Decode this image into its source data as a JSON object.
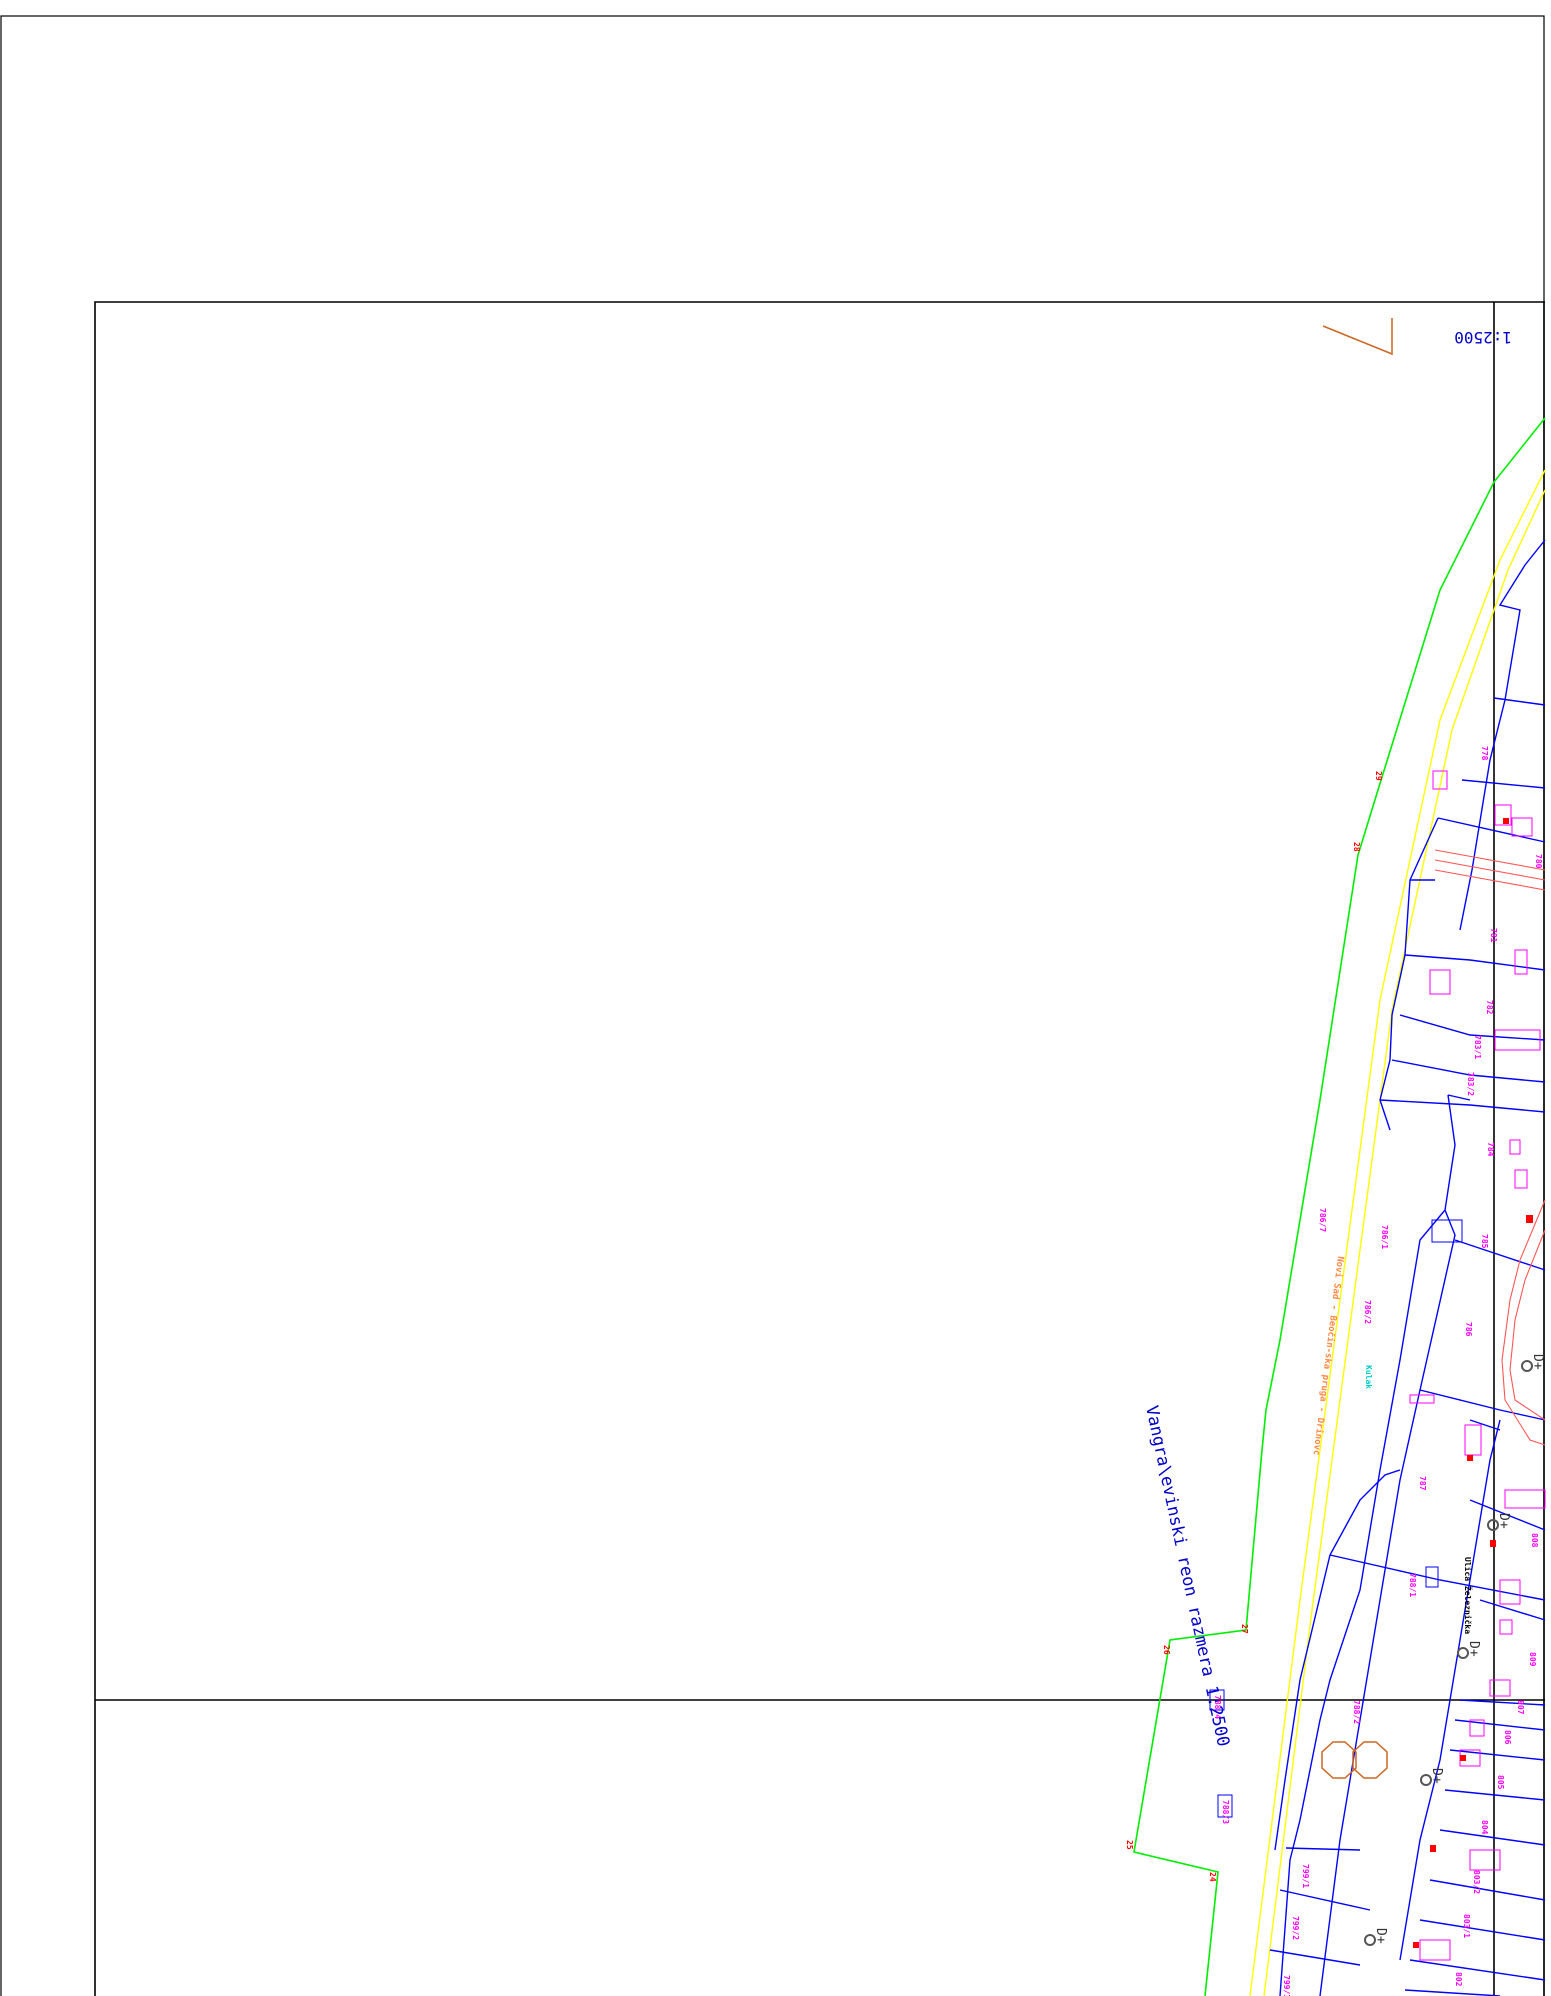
{
  "map": {
    "title": "Vangra\\evinski reon razmera 1:2500",
    "top_scale_fragment": "1:2500",
    "railway_label": "Novi Sad - Beočin-ska pruga - Drinovc",
    "street_label": "Ulica Železnička",
    "cyan_label": "Kulak",
    "well_symbol": "D+",
    "boundary_points": [
      "29",
      "28",
      "27",
      "26",
      "25",
      "24"
    ],
    "parcels": [
      "778",
      "780",
      "781",
      "782",
      "783/1",
      "783/2",
      "784",
      "785",
      "786/7",
      "786/1",
      "786/2",
      "786",
      "787",
      "788/1",
      "788/2",
      "808",
      "809",
      "807",
      "806",
      "805",
      "804",
      "803/2",
      "803/1",
      "802",
      "788/4",
      "788/3",
      "799/1",
      "799/2",
      "799/3"
    ],
    "colors": {
      "frame": "#000000",
      "parcel_lines": "#0000ff",
      "parcel_numbers": "#ff00ff",
      "boundary": "#00ee00",
      "railway": "#ffff00",
      "boundary_points": "#ff0000",
      "roads": "#ff5555",
      "orange_symbols": "#cc6622",
      "cyan": "#00cccc"
    }
  }
}
